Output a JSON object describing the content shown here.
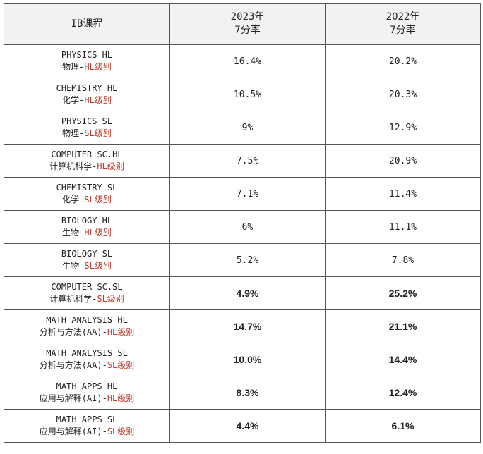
{
  "header": {
    "course": "IB课程",
    "col2023": "2023年",
    "col2023_sub": "7分率",
    "col2022": "2022年",
    "col2022_sub": "7分率"
  },
  "rows": [
    {
      "en": "PHYSICS HL",
      "cn": "物理-",
      "level": "HL级别",
      "v2023": "16.4%",
      "v2022": "20.2%",
      "bold": false
    },
    {
      "en": "CHEMISTRY HL",
      "cn": "化学-",
      "level": "HL级别",
      "v2023": "10.5%",
      "v2022": "20.3%",
      "bold": false
    },
    {
      "en": "PHYSICS SL",
      "cn": "物理-",
      "level": "SL级别",
      "v2023": "9%",
      "v2022": "12.9%",
      "bold": false
    },
    {
      "en": "COMPUTER SC.HL",
      "cn": "计算机科学-",
      "level": "HL级别",
      "v2023": "7.5%",
      "v2022": "20.9%",
      "bold": false
    },
    {
      "en": "CHEMISTRY SL",
      "cn": "化学-",
      "level": "SL级别",
      "v2023": "7.1%",
      "v2022": "11.4%",
      "bold": false
    },
    {
      "en": "BIOLOGY HL",
      "cn": "生物-",
      "level": "HL级别",
      "v2023": "6%",
      "v2022": "11.1%",
      "bold": false
    },
    {
      "en": "BIOLOGY SL",
      "cn": "生物-",
      "level": "SL级别",
      "v2023": "5.2%",
      "v2022": "7.8%",
      "bold": false
    },
    {
      "en": "COMPUTER SC.SL",
      "cn": "计算机科学-",
      "level": "SL级别",
      "v2023": "4.9%",
      "v2022": "25.2%",
      "bold": true
    },
    {
      "en": "MATH ANALYSIS HL",
      "cn": "分析与方法(AA)-",
      "level": "HL级别",
      "v2023": "14.7%",
      "v2022": "21.1%",
      "bold": true
    },
    {
      "en": "MATH ANALYSIS SL",
      "cn": "分析与方法(AA)-",
      "level": "SL级别",
      "v2023": "10.0%",
      "v2022": "14.4%",
      "bold": true
    },
    {
      "en": "MATH APPS HL",
      "cn": "应用与解释(AI)-",
      "level": "HL级别",
      "v2023": "8.3%",
      "v2022": "12.4%",
      "bold": true
    },
    {
      "en": "MATH APPS SL",
      "cn": "应用与解释(AI)-",
      "level": "SL级别",
      "v2023": "4.4%",
      "v2022": "6.1%",
      "bold": true
    }
  ]
}
